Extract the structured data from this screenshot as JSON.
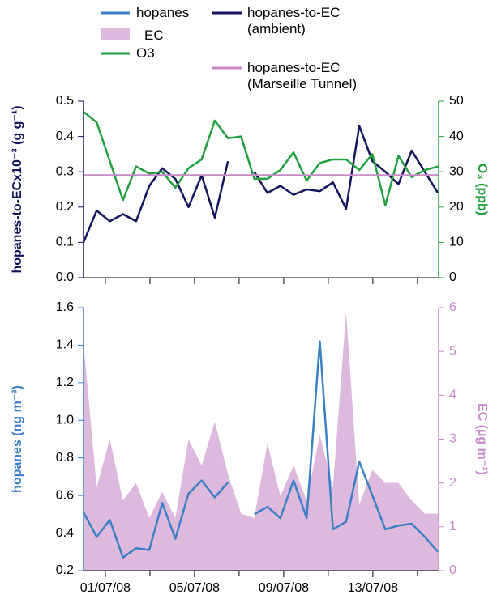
{
  "chart_data": [
    {
      "type": "line",
      "y_label": "hopanes-to-ECx10⁻³ (g g⁻¹)",
      "y2_label": "O₃ (ppb)",
      "x": [
        -0.98,
        -0.39,
        0.2,
        0.79,
        1.38,
        1.97,
        2.55,
        3.14,
        3.73,
        4.32,
        4.91,
        5.5,
        6.09,
        6.68,
        7.27,
        7.85,
        8.44,
        9.03,
        9.62,
        10.21,
        10.8,
        11.39,
        11.98,
        12.56,
        13.15,
        13.74,
        14.33,
        14.92
      ],
      "xlim": [
        -0.98,
        14.95
      ],
      "xticks": [
        0,
        2,
        4,
        6,
        8,
        10,
        12,
        14
      ],
      "ylim": [
        0,
        0.5
      ],
      "yticks": [
        {
          "value": 0,
          "label": "0.0"
        },
        0.1,
        0.2,
        0.3,
        0.4,
        0.5
      ],
      "y2lim": [
        0,
        50
      ],
      "y2ticks": [
        0,
        10,
        20,
        30,
        40,
        50
      ],
      "series": [
        {
          "name": "hopanes-to-EC (ambient)",
          "color": "#14145e",
          "axis": "y",
          "values": [
            0.1,
            0.19,
            0.16,
            0.18,
            0.16,
            0.26,
            0.31,
            0.28,
            0.2,
            0.29,
            0.17,
            0.33,
            null,
            0.3,
            0.24,
            0.26,
            0.235,
            0.25,
            0.245,
            0.27,
            0.195,
            0.43,
            0.33,
            0.3,
            0.265,
            0.36,
            0.3,
            0.24
          ]
        },
        {
          "name": "O3",
          "color": "#22a040",
          "axis": "y2",
          "values": [
            47,
            44,
            33,
            22,
            31.5,
            29.5,
            30,
            25.5,
            31,
            33.5,
            44.5,
            39.5,
            40,
            28,
            28,
            30.5,
            35.5,
            27.5,
            32.5,
            33.5,
            33.5,
            30.5,
            35,
            20.5,
            34.5,
            28.5,
            30.5,
            31.5
          ]
        }
      ],
      "reference_lines": [
        {
          "name": "hopanes-to-EC (Marseille Tunnel)",
          "value": 0.29,
          "color": "#c88ac8"
        }
      ]
    },
    {
      "type": "line",
      "y_label": "hopanes (ng m⁻³)",
      "y2_label": "EC (µg m⁻³)",
      "x": [
        -0.98,
        -0.39,
        0.2,
        0.79,
        1.38,
        1.97,
        2.55,
        3.14,
        3.73,
        4.32,
        4.91,
        5.5,
        6.09,
        6.68,
        7.27,
        7.85,
        8.44,
        9.03,
        9.62,
        10.21,
        10.8,
        11.39,
        11.98,
        12.56,
        13.15,
        13.74,
        14.33,
        14.92
      ],
      "xlim": [
        -0.98,
        14.95
      ],
      "xticks": [
        {
          "value": 0,
          "label": "01/07/08"
        },
        {
          "value": 4,
          "label": "05/07/08"
        },
        {
          "value": 8,
          "label": "09/07/08"
        },
        {
          "value": 12,
          "label": "13/07/08"
        }
      ],
      "xminorticks": [
        2,
        6,
        10,
        14
      ],
      "ylim": [
        0.2,
        1.6
      ],
      "yticks": [
        0.2,
        0.4,
        0.6,
        0.8,
        {
          "value": 1,
          "label": "1.0"
        },
        1.2,
        1.4,
        1.6
      ],
      "y2lim": [
        0,
        6
      ],
      "y2ticks": [
        0,
        1,
        2,
        3,
        4,
        5,
        6
      ],
      "series": [
        {
          "name": "EC",
          "color": "#ddb9dd",
          "axis": "y2",
          "style": "area",
          "values": [
            5.2,
            1.9,
            3.0,
            1.6,
            2.0,
            1.2,
            1.8,
            1.2,
            3.0,
            2.4,
            3.4,
            2.2,
            1.3,
            1.2,
            2.9,
            1.7,
            2.4,
            1.6,
            3.1,
            1.9,
            5.9,
            1.5,
            2.3,
            2.0,
            2.0,
            1.6,
            1.3,
            1.3
          ]
        },
        {
          "name": "hopanes",
          "color": "#3b7fc4",
          "axis": "y",
          "values": [
            0.51,
            0.38,
            0.47,
            0.27,
            0.32,
            0.31,
            0.56,
            0.37,
            0.61,
            0.68,
            0.59,
            0.67,
            null,
            0.5,
            0.54,
            0.48,
            0.68,
            0.48,
            1.42,
            0.42,
            0.46,
            0.78,
            0.6,
            0.42,
            0.44,
            0.45,
            0.38,
            0.3
          ]
        }
      ]
    }
  ]
}
